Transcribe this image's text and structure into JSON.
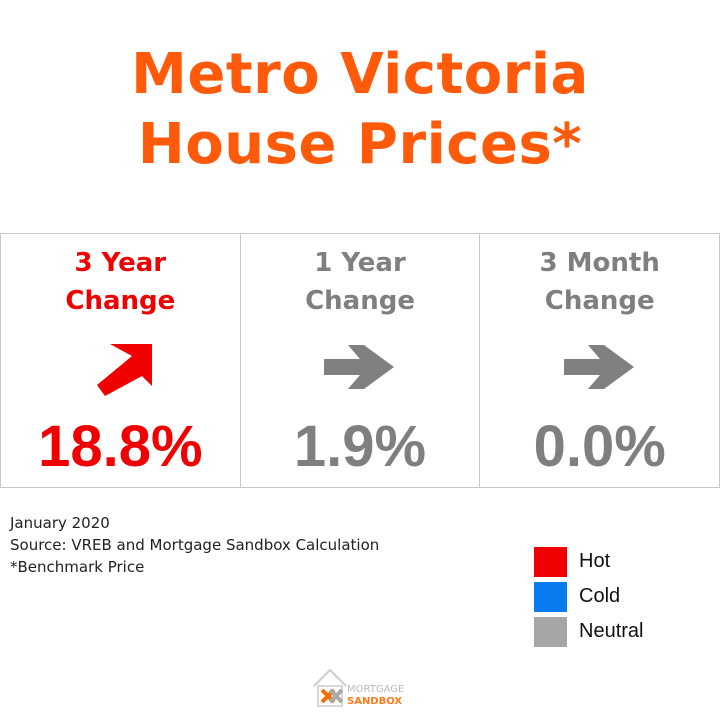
{
  "title": {
    "line1": "Metro Victoria",
    "line2": "House Prices*"
  },
  "colors": {
    "hot": "#f00000",
    "cold": "#0a7cf0",
    "neutral": "#a6a6a6",
    "title": "#ff5a0a"
  },
  "panels": [
    {
      "label_line1": "3 Year",
      "label_line2": "Change",
      "value": "18.8%",
      "status": "hot",
      "arrow": "up-right-arrow-icon"
    },
    {
      "label_line1": "1 Year",
      "label_line2": "Change",
      "value": "1.9%",
      "status": "neutral",
      "arrow": "right-arrow-icon"
    },
    {
      "label_line1": "3 Month",
      "label_line2": "Change",
      "value": "0.0%",
      "status": "neutral",
      "arrow": "right-arrow-icon"
    }
  ],
  "notes": {
    "date": "January 2020",
    "source": "Source: VREB and Mortgage Sandbox Calculation",
    "footnote": "*Benchmark Price"
  },
  "legend": [
    {
      "label": "Hot",
      "color": "#f00000"
    },
    {
      "label": "Cold",
      "color": "#0a7cf0"
    },
    {
      "label": "Neutral",
      "color": "#a6a6a6"
    }
  ],
  "logo": {
    "line1": "MORTGAGE",
    "line2": "SANDBOX"
  }
}
